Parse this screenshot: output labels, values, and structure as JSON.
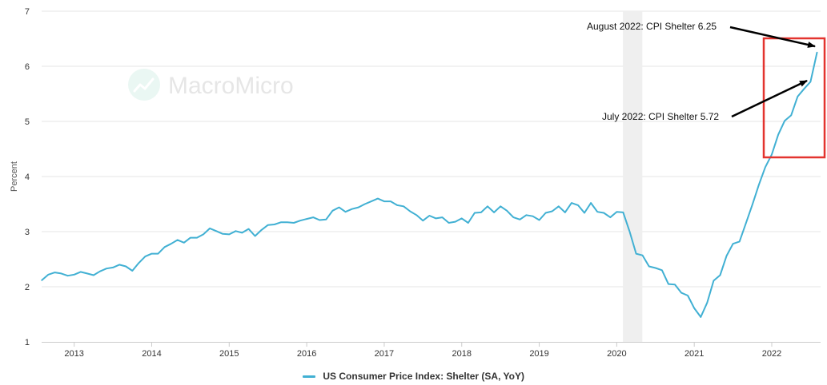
{
  "chart_data": {
    "type": "line",
    "title": "",
    "xlabel": "",
    "ylabel": "Percent",
    "ylim": [
      1,
      7
    ],
    "xlim": [
      2012.58,
      2022.63
    ],
    "yticks": [
      "1",
      "2",
      "3",
      "4",
      "5",
      "6",
      "7"
    ],
    "xticks": [
      "2013",
      "2014",
      "2015",
      "2016",
      "2017",
      "2018",
      "2019",
      "2020",
      "2021",
      "2022"
    ],
    "watermark": "MacroMicro",
    "recession_band": [
      2020.08,
      2020.33
    ],
    "series": [
      {
        "name": "US Consumer Price Index: Shelter (SA, YoY)",
        "color": "#41b0d3",
        "start": [
          2012,
          8
        ],
        "values": [
          2.12,
          2.22,
          2.26,
          2.24,
          2.2,
          2.22,
          2.27,
          2.24,
          2.21,
          2.28,
          2.33,
          2.35,
          2.4,
          2.37,
          2.29,
          2.43,
          2.55,
          2.6,
          2.6,
          2.72,
          2.78,
          2.85,
          2.8,
          2.89,
          2.89,
          2.95,
          3.06,
          3.01,
          2.96,
          2.95,
          3.01,
          2.98,
          3.05,
          2.92,
          3.03,
          3.12,
          3.13,
          3.17,
          3.17,
          3.16,
          3.2,
          3.23,
          3.26,
          3.21,
          3.22,
          3.38,
          3.44,
          3.36,
          3.41,
          3.44,
          3.5,
          3.55,
          3.6,
          3.55,
          3.55,
          3.48,
          3.46,
          3.37,
          3.3,
          3.2,
          3.29,
          3.24,
          3.26,
          3.16,
          3.18,
          3.24,
          3.16,
          3.34,
          3.35,
          3.46,
          3.35,
          3.46,
          3.38,
          3.26,
          3.22,
          3.3,
          3.28,
          3.21,
          3.34,
          3.37,
          3.46,
          3.35,
          3.52,
          3.48,
          3.34,
          3.52,
          3.36,
          3.34,
          3.26,
          3.36,
          3.35,
          3.0,
          2.6,
          2.57,
          2.37,
          2.34,
          2.3,
          2.05,
          2.04,
          1.89,
          1.84,
          1.61,
          1.45,
          1.71,
          2.11,
          2.21,
          2.56,
          2.78,
          2.82,
          3.15,
          3.49,
          3.85,
          4.17,
          4.4,
          4.76,
          5.01,
          5.11,
          5.45,
          5.59,
          5.72,
          6.25
        ]
      }
    ],
    "annotations": [
      {
        "text": "August 2022: CPI Shelter 6.25",
        "x": 2022.58,
        "y": 6.25
      },
      {
        "text": "July 2022: CPI Shelter 5.72",
        "x": 2022.5,
        "y": 5.72
      }
    ]
  },
  "legend_label": "US Consumer Price Index: Shelter (SA, YoY)"
}
